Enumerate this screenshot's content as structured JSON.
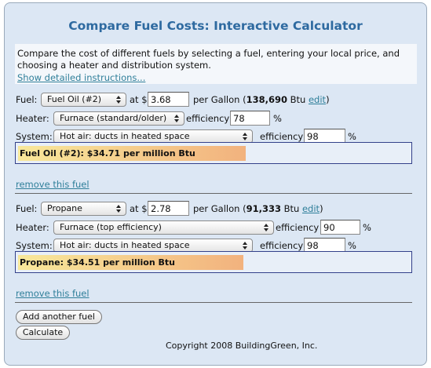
{
  "title": "Compare Fuel Costs: Interactive Calculator",
  "intro": {
    "text": "Compare the cost of different fuels by selecting a fuel, entering your local price, and choosing a heater and distribution system.",
    "link": "Show detailed instructions..."
  },
  "fuels": [
    {
      "fuel_label": "Fuel:",
      "fuel": "Fuel Oil (#2)",
      "price_label": "at $",
      "price": "3.68",
      "unit": "per Gallon (",
      "btu": "138,690",
      "btu_suffix": "Btu",
      "edit": "edit",
      "close": ")",
      "heater_label": "Heater:",
      "heater": "Furnace (standard/older)",
      "heater_eff_label": "efficiency",
      "heater_eff": "78",
      "heater_eff_unit": "%",
      "system_label": "System:",
      "system": "Hot air: ducts in heated space",
      "system_eff_label": "efficiency",
      "system_eff": "98",
      "system_eff_unit": "%",
      "result": "Fuel Oil (#2): $34.71 per million Btu",
      "remove": "remove this fuel"
    },
    {
      "fuel_label": "Fuel:",
      "fuel": "Propane",
      "price_label": "at $",
      "price": "2.78",
      "unit": "per Gallon (",
      "btu": "91,333",
      "btu_suffix": "Btu",
      "edit": "edit",
      "close": ")",
      "heater_label": "Heater:",
      "heater": "Furnace (top efficiency)",
      "heater_eff_label": "efficiency",
      "heater_eff": "90",
      "heater_eff_unit": "%",
      "system_label": "System:",
      "system": "Hot air: ducts in heated space",
      "system_eff_label": "efficiency",
      "system_eff": "98",
      "system_eff_unit": "%",
      "result": "Propane: $34.51 per million Btu",
      "remove": "remove this fuel"
    }
  ],
  "buttons": [
    "Add another fuel",
    "Calculate"
  ],
  "copyright": "Copyright 2008 BuildingGreen, Inc."
}
